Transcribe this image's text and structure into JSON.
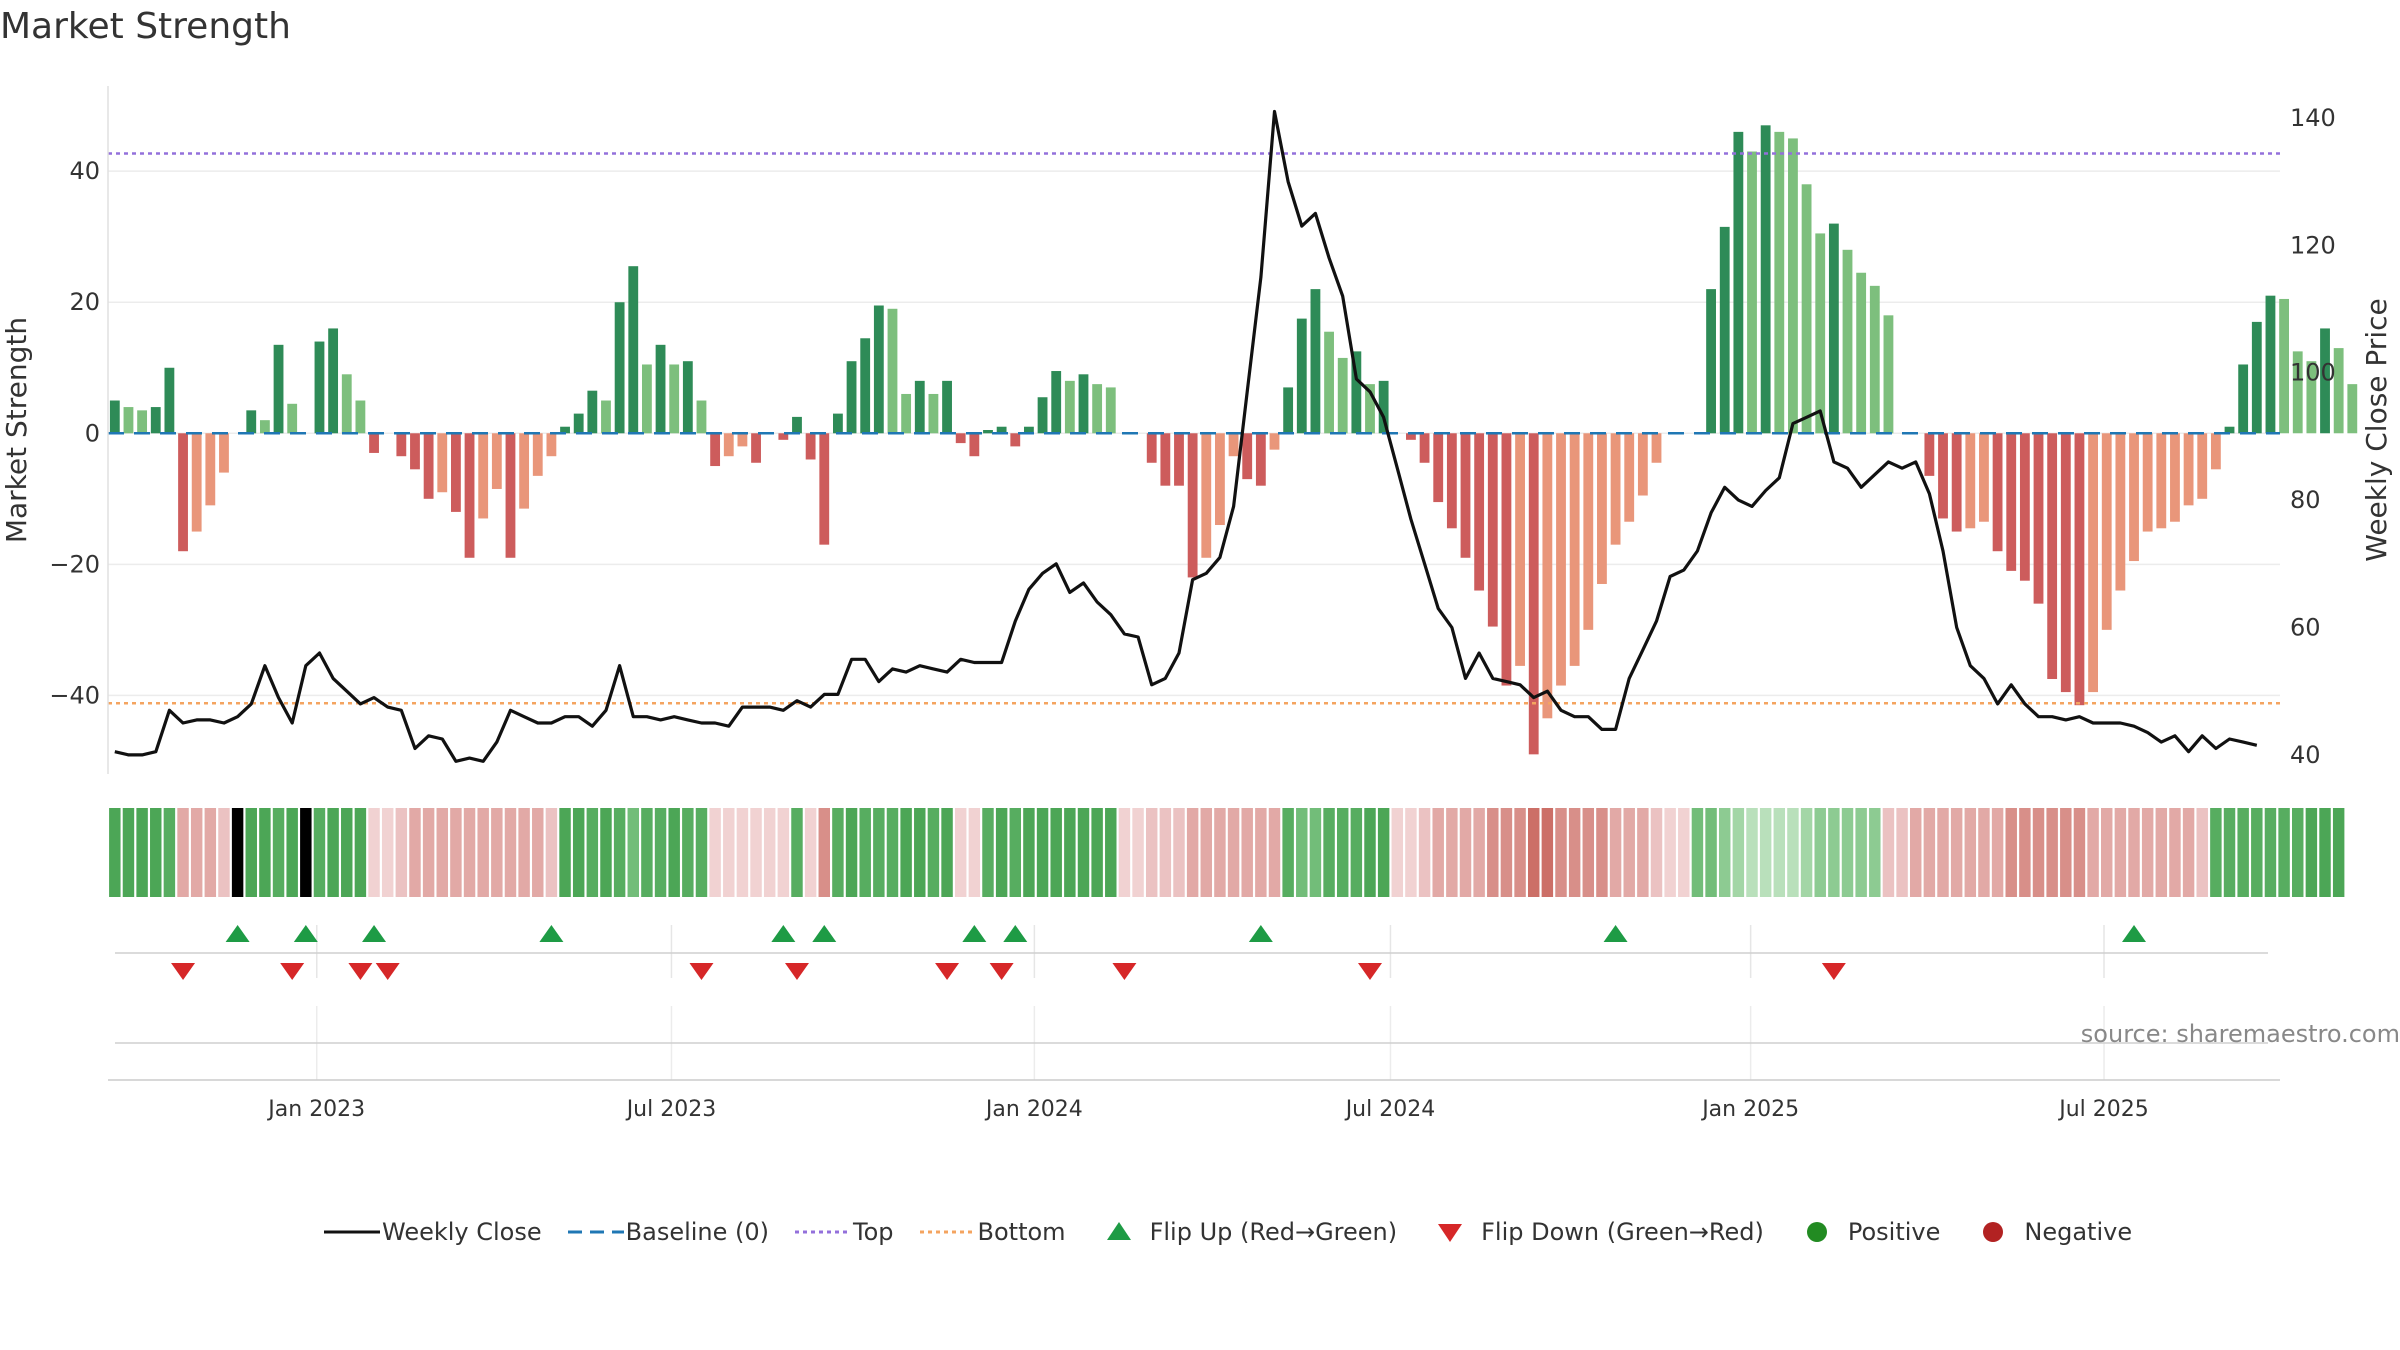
{
  "title": "Market Strength",
  "source": "source: sharemaestro.com",
  "colors": {
    "green_dark": "#2e8b57",
    "green_light": "#7dbf7d",
    "red_dark": "#cd5c5c",
    "red_light": "#e9967a",
    "close_line": "#111111",
    "baseline": "#1f77b4",
    "top_line": "#9370db",
    "bottom_line": "#f4a460",
    "flip_up": "#1e9b45",
    "flip_down": "#d62728",
    "positive": "#228b22",
    "negative": "#b22222"
  },
  "legend": [
    {
      "key": "close",
      "label": "Weekly Close"
    },
    {
      "key": "baseline",
      "label": "Baseline (0)"
    },
    {
      "key": "top",
      "label": "Top"
    },
    {
      "key": "bottom",
      "label": "Bottom"
    },
    {
      "key": "flip_up",
      "label": "Flip Up (Red→Green)"
    },
    {
      "key": "flip_down",
      "label": "Flip Down (Green→Red)"
    },
    {
      "key": "positive",
      "label": "Positive"
    },
    {
      "key": "negative",
      "label": "Negative"
    }
  ],
  "chart_data": {
    "type": "bar",
    "title": "Market Strength",
    "ylabel": "Market Strength",
    "y2label": "Weekly Close Price",
    "ylim": [
      -52,
      53
    ],
    "y2lim": [
      37,
      145
    ],
    "yticks": [
      -40,
      -20,
      0,
      20,
      40
    ],
    "yticklabels": [
      "−40",
      "−20",
      "0",
      "20",
      "40"
    ],
    "y2ticks": [
      40,
      60,
      80,
      100,
      120,
      140
    ],
    "y2ticklabels": [
      "40",
      "60",
      "80",
      "100",
      "120",
      "140"
    ],
    "xlim": [
      0,
      159.2
    ],
    "xticks": [
      15.3,
      41.3,
      67.9,
      94.0,
      120.4,
      146.3
    ],
    "xticklabels": [
      "Jan 2023",
      "Jul 2023",
      "Jan 2024",
      "Jul 2024",
      "Jan 2025",
      "Jul 2025"
    ],
    "top_threshold": 42.7,
    "bottom_threshold": -41.2,
    "baseline": 0,
    "series": [
      {
        "name": "Market Strength",
        "values": [
          5,
          4,
          3.5,
          4,
          10,
          -18,
          -15,
          -11,
          -6,
          0,
          3.5,
          2,
          13.5,
          4.5,
          0,
          14,
          16,
          9,
          5,
          -3,
          0,
          -3.5,
          -5.5,
          -10,
          -9,
          -12,
          -19,
          -13,
          -8.5,
          -19,
          -11.5,
          -6.5,
          -3.5,
          1,
          3,
          6.5,
          5,
          20,
          25.5,
          10.5,
          13.5,
          10.5,
          11,
          5,
          -5,
          -3.5,
          -2,
          -4.5,
          0,
          -1,
          2.5,
          -4,
          -17,
          3,
          11,
          14.5,
          19.5,
          19,
          6,
          8,
          6,
          8,
          -1.5,
          -3.5,
          0.5,
          1,
          -2,
          1,
          5.5,
          9.5,
          8,
          9,
          7.5,
          7,
          0,
          0,
          -4.5,
          -8,
          -8,
          -22,
          -19,
          -14,
          -3.5,
          -7,
          -8,
          -2.5,
          7,
          17.5,
          22,
          15.5,
          11.5,
          12.5,
          7.5,
          8,
          0,
          -1,
          -4.5,
          -10.5,
          -14.5,
          -19,
          -24,
          -29.5,
          -38.5,
          -35.5,
          -49,
          -43.5,
          -38.5,
          -35.5,
          -30,
          -23,
          -17,
          -13.5,
          -9.5,
          -4.5,
          0,
          0,
          0,
          22,
          31.5,
          46,
          43,
          47,
          46,
          45,
          38,
          30.5,
          32,
          28,
          24.5,
          22.5,
          18,
          0,
          0,
          -6.5,
          -13,
          -15,
          -14.5,
          -13.5,
          -18,
          -21,
          -22.5,
          -26,
          -37.5,
          -39.5,
          -41.5,
          -39.5,
          -30,
          -24,
          -19.5,
          -15,
          -14.5,
          -13.5,
          -11,
          -10,
          -5.5,
          1,
          10.5,
          17,
          21,
          20.5,
          12.5,
          11,
          16,
          13,
          7.5
        ]
      },
      {
        "name": "Weekly Close",
        "values": [
          40.5,
          40,
          40,
          40.5,
          47,
          45,
          45.5,
          45.5,
          45,
          46,
          48,
          54,
          49,
          45,
          54,
          56,
          52,
          50,
          48,
          49,
          47.5,
          47,
          41,
          43,
          42.5,
          39,
          39.5,
          39,
          42,
          47,
          46,
          45,
          45,
          46,
          46,
          44.5,
          47,
          54,
          46,
          46,
          45.5,
          46,
          45.5,
          45,
          45,
          44.5,
          47.5,
          47.5,
          47.5,
          47,
          48.5,
          47.5,
          49.5,
          49.5,
          55,
          55,
          51.5,
          53.5,
          53,
          54,
          53.5,
          53,
          55,
          54.5,
          54.5,
          54.5,
          61,
          66,
          68.5,
          70,
          65.5,
          67,
          64,
          62,
          59,
          58.5,
          51,
          52,
          56,
          67.5,
          68.5,
          71,
          79,
          97,
          115,
          141,
          130,
          123,
          125,
          118,
          112,
          99,
          97,
          93,
          85,
          77,
          70,
          63,
          60,
          52,
          56,
          52,
          51.5,
          51,
          49,
          50,
          47,
          46,
          46,
          44,
          44,
          52,
          56.5,
          61,
          68,
          69,
          72,
          78,
          82,
          80,
          79,
          81.5,
          83.5,
          92,
          93,
          94,
          86,
          85,
          82,
          84,
          86,
          85,
          86,
          81,
          72,
          60,
          54,
          52,
          48,
          51,
          48,
          46,
          46,
          45.5,
          46,
          45,
          45,
          45,
          44.5,
          43.5,
          42,
          43,
          40.5,
          43,
          41,
          42.5,
          42,
          41.5
        ]
      }
    ],
    "heat_strip": [
      6,
      6,
      6,
      6,
      5,
      -3,
      -3,
      -3,
      -2,
      0,
      6,
      6,
      5,
      6,
      0,
      5,
      6,
      6,
      6,
      -1,
      -1,
      -2,
      -3,
      -3,
      -3,
      -3,
      -3,
      -3,
      -3,
      -3,
      -3,
      -3,
      -2,
      6,
      6,
      5,
      6,
      5,
      4,
      5,
      5,
      6,
      5,
      5,
      -1,
      -1,
      -1,
      -1,
      -1,
      -1,
      5,
      -1,
      -4,
      5,
      6,
      5,
      5,
      5,
      6,
      6,
      5,
      6,
      -1,
      -1,
      5,
      6,
      5,
      6,
      6,
      6,
      6,
      6,
      6,
      6,
      -1,
      -1,
      -2,
      -2,
      -2,
      -3,
      -3,
      -3,
      -3,
      -3,
      -3,
      -3,
      5,
      4,
      4,
      5,
      5,
      5,
      6,
      6,
      -1,
      -1,
      -2,
      -3,
      -3,
      -3,
      -3,
      -4,
      -4,
      -4,
      -5,
      -5,
      -4,
      -4,
      -4,
      -4,
      -3,
      -3,
      -3,
      -2,
      -1,
      -1,
      4,
      4,
      3,
      2,
      1,
      1,
      1,
      1,
      2,
      3,
      3,
      3,
      3,
      3,
      -2,
      -2,
      -3,
      -3,
      -3,
      -3,
      -3,
      -3,
      -3,
      -4,
      -4,
      -4,
      -4,
      -4,
      -4,
      -3,
      -3,
      -3,
      -3,
      -3,
      -3,
      -3,
      -3,
      -2,
      5,
      5,
      5,
      5,
      5,
      5,
      5,
      6,
      6,
      6
    ],
    "flip_up": [
      9,
      14,
      19,
      32,
      49,
      52,
      63,
      66,
      84,
      110,
      148
    ],
    "flip_down": [
      5,
      13,
      18,
      20,
      43,
      50,
      61,
      65,
      74,
      92,
      126
    ]
  }
}
